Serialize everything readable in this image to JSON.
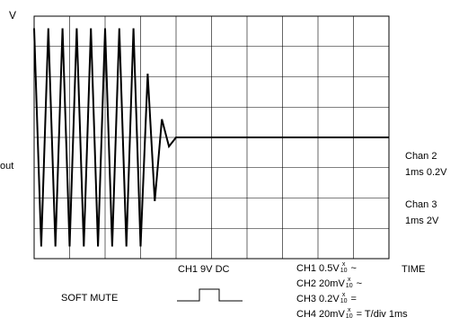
{
  "chart_data": {
    "type": "line",
    "y_axis_label": "V",
    "left_label": "out",
    "grid": {
      "on": true,
      "columns": 10,
      "rows": 8
    },
    "x": [
      0,
      0.2,
      0.4,
      0.6,
      0.8,
      1.0,
      1.2,
      1.4,
      1.6,
      1.8,
      2.0,
      2.2,
      2.4,
      2.6,
      2.8,
      3.0,
      3.2,
      3.4,
      3.6,
      3.8,
      4.0,
      10.0
    ],
    "series": [
      {
        "values": [
          3.6,
          -3.6,
          3.6,
          -3.6,
          3.6,
          -3.6,
          3.6,
          -3.6,
          3.6,
          -3.6,
          3.6,
          -3.6,
          3.6,
          -3.6,
          3.6,
          -3.6,
          2.1,
          -2.1,
          0.6,
          -0.3,
          0,
          0
        ]
      }
    ],
    "ylim": [
      -4,
      4
    ],
    "xlim": [
      0,
      10
    ],
    "channel_labels": [
      {
        "name": "Chan 2",
        "setting": "1ms 0.2V"
      },
      {
        "name": "Chan 3",
        "setting": "1ms 2V"
      }
    ],
    "ch1_supply": "CH1 9V DC",
    "control_label": "SOFT MUTE",
    "time_label": "TIME",
    "settings": [
      {
        "prefix": "CH1 0.5V",
        "top": "x",
        "bottom": "10",
        "suffix": " ~"
      },
      {
        "prefix": "CH2 20mV",
        "top": "x",
        "bottom": "10",
        "suffix": " ~"
      },
      {
        "prefix": "CH3 0.2V",
        "top": "x",
        "bottom": "10",
        "suffix": " ="
      },
      {
        "prefix": "CH4 20mV",
        "top": "x",
        "bottom": "10",
        "suffix": " = T/div 1ms"
      }
    ],
    "colors": {
      "trace": "#000000",
      "grid": "#000000"
    }
  }
}
